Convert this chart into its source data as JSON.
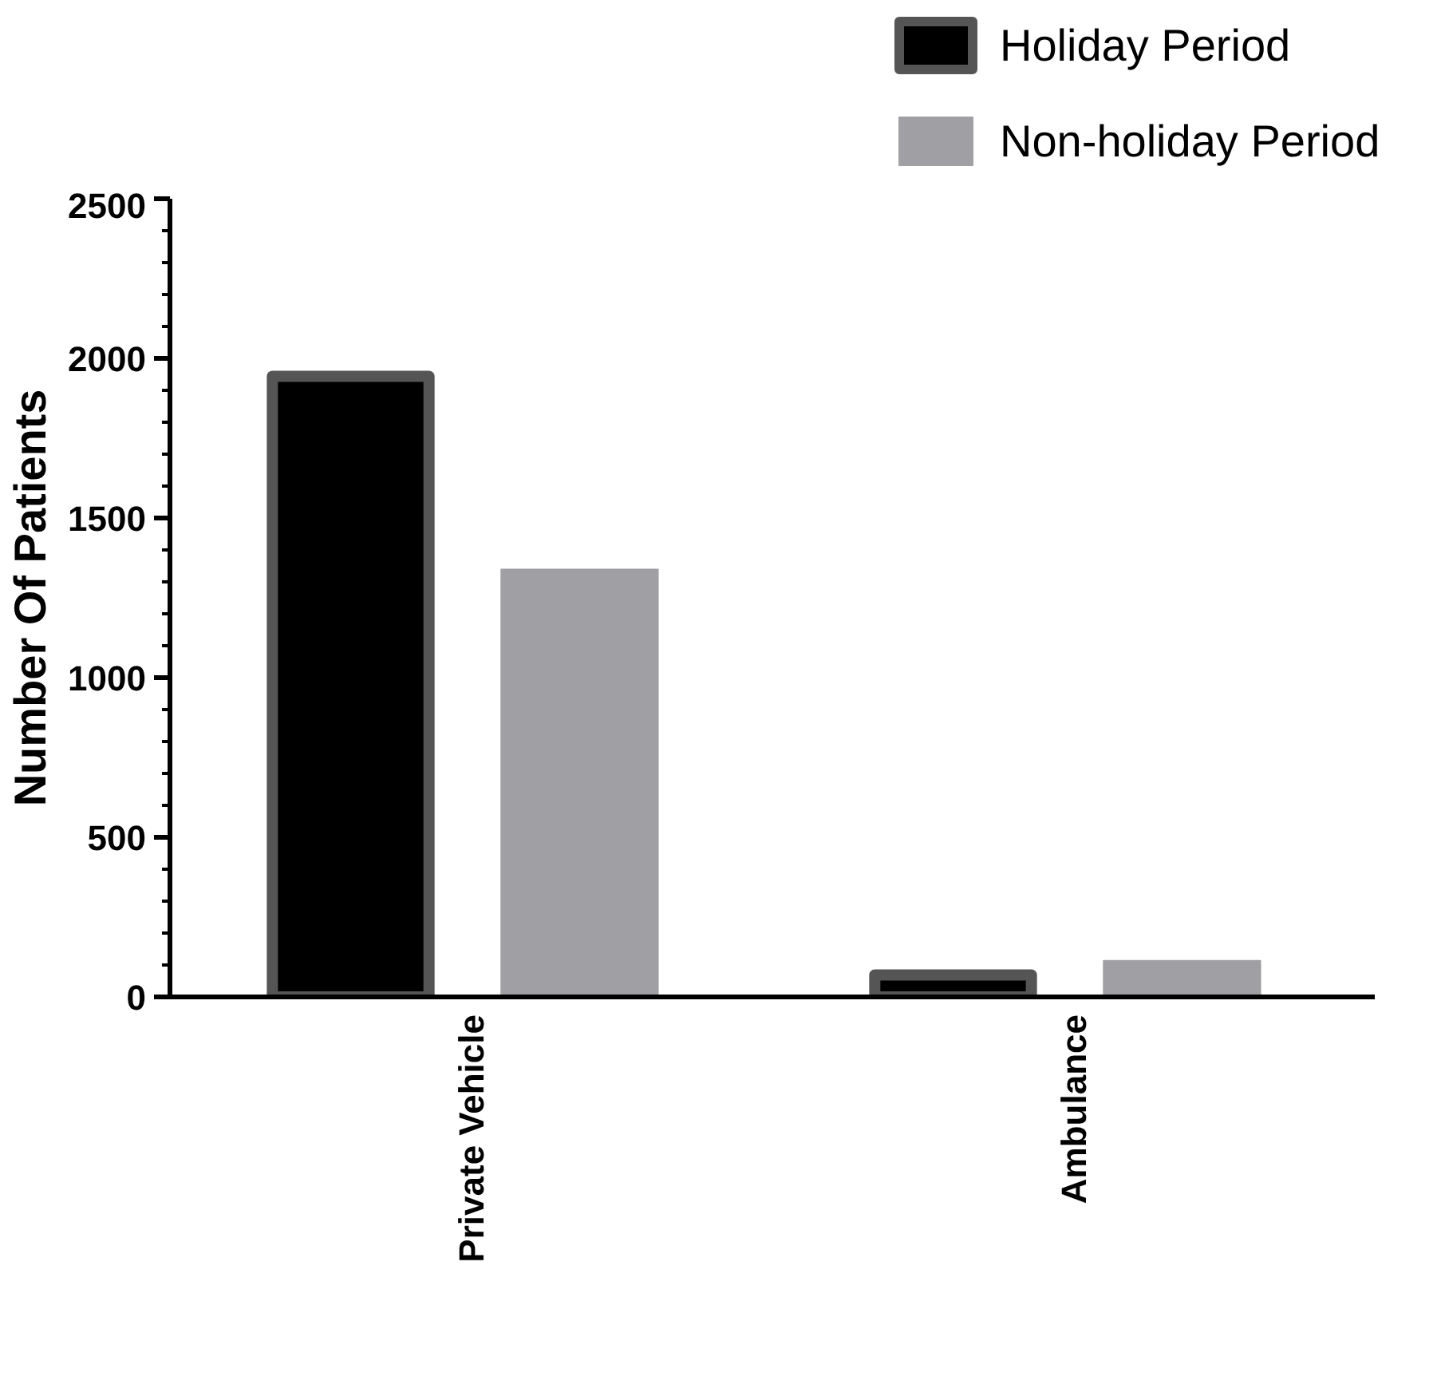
{
  "chart_data": {
    "type": "bar",
    "ylabel": "Number Of Patients",
    "categories": [
      "Private Vehicle",
      "Ambulance"
    ],
    "series": [
      {
        "name": "Holiday Period",
        "color": "#000000",
        "values": [
          1944,
          69
        ]
      },
      {
        "name": "Non-holiday Period",
        "color": "#a0a0a4",
        "values": [
          1339,
          113
        ]
      }
    ],
    "ylim": [
      0,
      2500
    ],
    "yticks": [
      0,
      500,
      1000,
      1500,
      2000,
      2500
    ],
    "grid": false,
    "legend": "top right"
  }
}
